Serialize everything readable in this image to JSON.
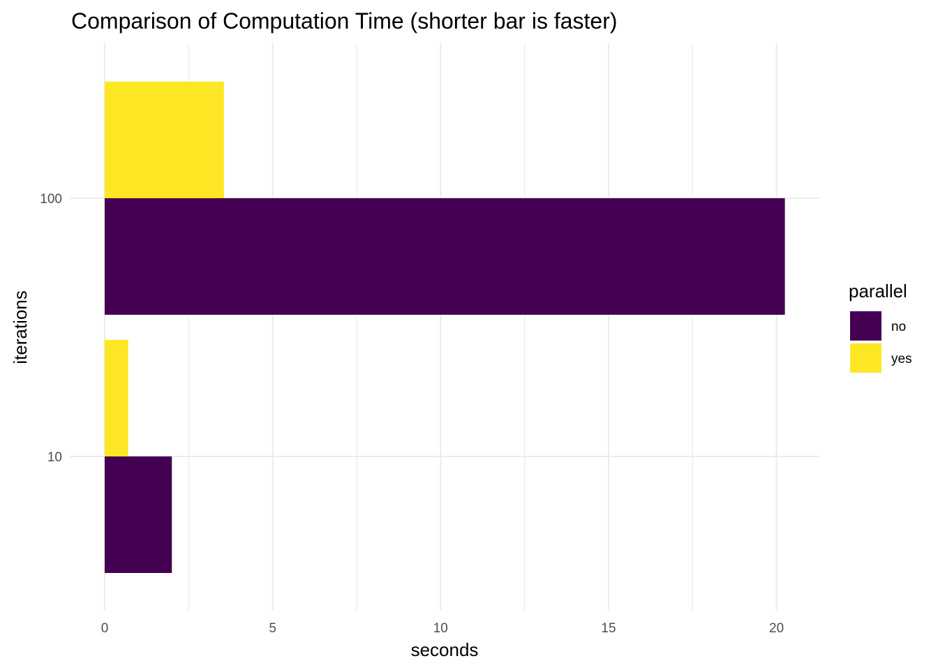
{
  "chart_data": {
    "type": "bar",
    "orientation": "horizontal",
    "title": "Comparison of Computation Time (shorter bar is faster)",
    "xlabel": "seconds",
    "ylabel": "iterations",
    "categories": [
      "10",
      "100"
    ],
    "xlim": [
      0,
      21.3
    ],
    "x_ticks": [
      "0",
      "5",
      "10",
      "15",
      "20"
    ],
    "grid": true,
    "legend": {
      "title": "parallel",
      "position": "right"
    },
    "series": [
      {
        "name": "no",
        "color": "#440154",
        "values": [
          2.0,
          20.25
        ]
      },
      {
        "name": "yes",
        "color": "#fde725",
        "values": [
          0.7,
          3.55
        ]
      }
    ]
  }
}
